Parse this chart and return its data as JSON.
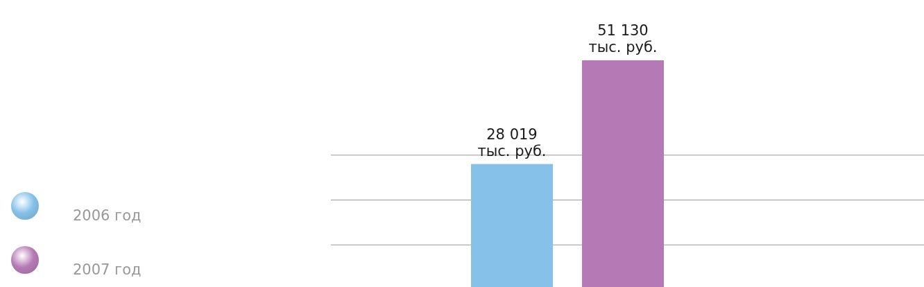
{
  "chart_data": {
    "type": "bar",
    "categories": [
      null
    ],
    "series": [
      {
        "name": "2006 год",
        "color": "#85c1e9",
        "values": [
          28019
        ],
        "value_labels": [
          "28 019\nтыс. руб."
        ]
      },
      {
        "name": "2007 год",
        "color": "#b57ab5",
        "values": [
          51130
        ],
        "value_labels": [
          "51 130\nтыс. руб."
        ]
      }
    ],
    "yticks": [
      {
        "value": 10000,
        "label": null
      },
      {
        "value": 20000,
        "label": null
      },
      {
        "value": 30000,
        "label": null
      }
    ],
    "grid": "y",
    "legend": "left"
  }
}
